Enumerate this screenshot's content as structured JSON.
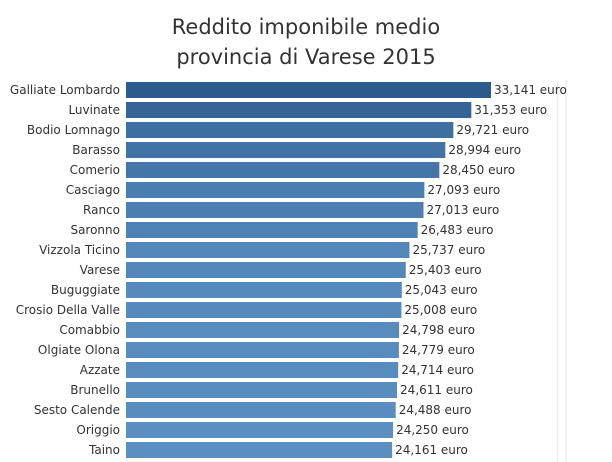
{
  "chart_data": {
    "type": "bar",
    "orientation": "horizontal",
    "title_line1": "Reddito imponibile medio",
    "title_line2": "provincia di Varese 2015",
    "value_suffix": " euro",
    "bar_color_start": "#2b5b8c",
    "bar_color_end": "#5b8fc2",
    "categories": [
      "Galliate Lombardo",
      "Luvinate",
      "Bodio Lomnago",
      "Barasso",
      "Comerio",
      "Casciago",
      "Ranco",
      "Saronno",
      "Vizzola Ticino",
      "Varese",
      "Buguggiate",
      "Crosio Della Valle",
      "Comabbio",
      "Olgiate Olona",
      "Azzate",
      "Brunello",
      "Sesto Calende",
      "Origgio",
      "Taino"
    ],
    "values": [
      33141,
      31353,
      29721,
      28994,
      28450,
      27093,
      27013,
      26483,
      25737,
      25403,
      25043,
      25008,
      24798,
      24779,
      24714,
      24611,
      24488,
      24250,
      24161
    ],
    "value_labels": [
      "33,141 euro",
      "31,353 euro",
      "29,721 euro",
      "28,994 euro",
      "28,450 euro",
      "27,093 euro",
      "27,013 euro",
      "26,483 euro",
      "25,737 euro",
      "25,403 euro",
      "25,043 euro",
      "25,008 euro",
      "24,798 euro",
      "24,779 euro",
      "24,714 euro",
      "24,611 euro",
      "24,488 euro",
      "24,250 euro",
      "24,161 euro"
    ],
    "xlim": [
      0,
      40000
    ],
    "grid": true
  }
}
